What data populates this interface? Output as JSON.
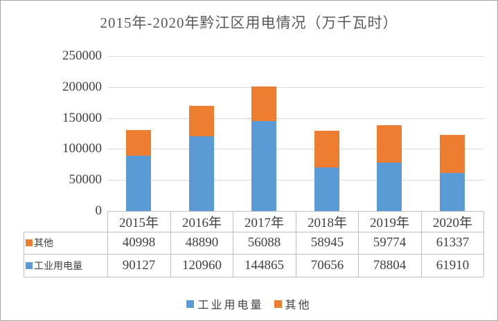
{
  "title": "2015年-2020年黔江区用电情况（万千瓦时）",
  "chart_data": {
    "type": "bar",
    "stacked": true,
    "title": "2015年-2020年黔江区用电情况（万千瓦时）",
    "categories": [
      "2015年",
      "2016年",
      "2017年",
      "2018年",
      "2019年",
      "2020年"
    ],
    "series": [
      {
        "name": "工业用电量",
        "color": "#5B9BD5",
        "values": [
          90127,
          120960,
          144865,
          70656,
          78804,
          61910
        ]
      },
      {
        "name": "其他",
        "color": "#ED7D31",
        "values": [
          40998,
          48890,
          56088,
          58945,
          59774,
          61337
        ]
      }
    ],
    "ylim": [
      0,
      250000
    ],
    "yticks": [
      0,
      50000,
      100000,
      150000,
      200000,
      250000
    ],
    "grid": true,
    "legend_position": "bottom",
    "data_table_shown": true
  },
  "data_table": {
    "corner_label": "",
    "column_headers": [
      "2015年",
      "2016年",
      "2017年",
      "2018年",
      "2019年",
      "2020年"
    ],
    "rows": [
      {
        "label": "其他",
        "swatch_color": "#ED7D31",
        "values": [
          "40998",
          "48890",
          "56088",
          "58945",
          "59774",
          "61337"
        ]
      },
      {
        "label": "工业用电量",
        "swatch_color": "#5B9BD5",
        "values": [
          "90127",
          "120960",
          "144865",
          "70656",
          "78804",
          "61910"
        ]
      }
    ]
  },
  "legend": {
    "items": [
      {
        "label": "工业用电量",
        "color": "#5B9BD5"
      },
      {
        "label": "其他",
        "color": "#ED7D31"
      }
    ]
  },
  "colors": {
    "industrial_blue": "#5B9BD5",
    "other_orange": "#ED7D31",
    "gridline": "#D9D9D9",
    "table_border": "#BFBFBF",
    "axis_text": "#404040",
    "title_text": "#595959",
    "frame_border": "#A6A6A6",
    "background": "#FFFFFF"
  }
}
